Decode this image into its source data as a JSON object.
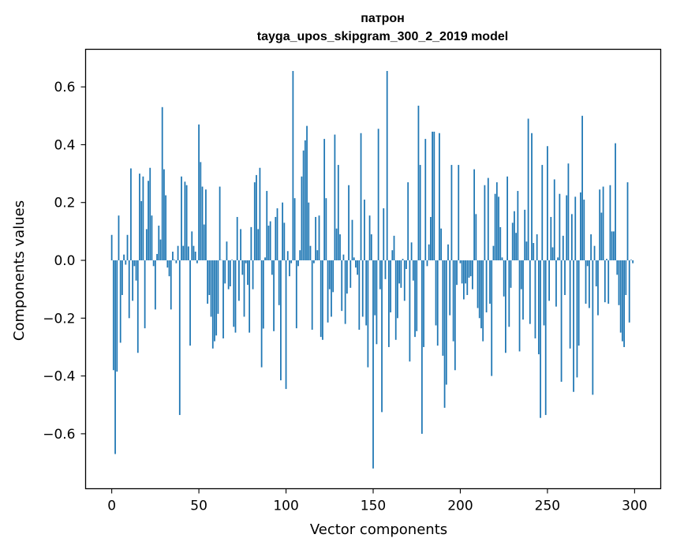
{
  "chart_data": {
    "type": "bar",
    "title": "патрон",
    "subtitle": "tayga_upos_skipgram_300_2_2019 model",
    "xlabel": "Vector components",
    "ylabel": "Components values",
    "xlim": [
      -15,
      315
    ],
    "ylim": [
      -0.79,
      0.73
    ],
    "xticks": [
      0,
      50,
      100,
      150,
      200,
      250,
      300
    ],
    "yticks": [
      -0.6,
      -0.4,
      -0.2,
      0.0,
      0.2,
      0.4,
      0.6
    ],
    "ytick_labels": [
      "−0.6",
      "−0.4",
      "−0.2",
      "0.0",
      "0.2",
      "0.4",
      "0.6"
    ],
    "grid": false,
    "colors": {
      "bar": "#1f77b4",
      "axis": "#000000",
      "background": "#ffffff"
    },
    "values": [
      0.088,
      -0.38,
      -0.67,
      -0.385,
      0.155,
      -0.285,
      -0.12,
      0.02,
      -0.015,
      0.088,
      -0.2,
      0.318,
      -0.14,
      -0.02,
      -0.07,
      -0.32,
      0.3,
      0.205,
      0.29,
      -0.235,
      0.108,
      0.275,
      0.32,
      0.155,
      -0.02,
      -0.17,
      0.022,
      0.12,
      0.072,
      0.53,
      0.315,
      0.225,
      -0.025,
      -0.055,
      -0.17,
      0.03,
      0.002,
      -0.01,
      0.05,
      -0.535,
      0.29,
      0.05,
      0.272,
      0.26,
      0.048,
      -0.295,
      0.1,
      0.05,
      0.03,
      -0.01,
      0.47,
      0.34,
      0.255,
      0.124,
      0.245,
      -0.15,
      -0.12,
      -0.195,
      -0.305,
      -0.28,
      -0.26,
      -0.185,
      0.255,
      0.001,
      -0.27,
      -0.08,
      0.065,
      -0.1,
      -0.09,
      0.002,
      -0.23,
      -0.25,
      0.15,
      -0.14,
      0.108,
      -0.05,
      -0.195,
      -0.01,
      -0.085,
      -0.25,
      0.115,
      -0.1,
      0.27,
      0.295,
      0.108,
      0.32,
      -0.37,
      -0.236,
      0.01,
      0.24,
      0.12,
      0.135,
      -0.05,
      -0.245,
      0.15,
      0.18,
      -0.155,
      -0.415,
      0.2,
      0.13,
      -0.445,
      0.032,
      -0.055,
      -0.01,
      0.655,
      0.215,
      -0.235,
      -0.02,
      0.035,
      0.29,
      0.38,
      0.415,
      0.465,
      0.2,
      0.05,
      -0.24,
      -0.01,
      0.15,
      0.035,
      0.155,
      -0.265,
      -0.275,
      0.42,
      0.215,
      -0.215,
      -0.1,
      -0.195,
      -0.11,
      0.435,
      0.11,
      0.33,
      0.09,
      -0.175,
      0.02,
      -0.22,
      -0.115,
      0.26,
      -0.095,
      0.14,
      0.01,
      -0.025,
      -0.05,
      -0.24,
      0.44,
      -0.195,
      0.21,
      -0.225,
      -0.37,
      0.155,
      0.09,
      -0.72,
      -0.19,
      -0.29,
      0.455,
      -0.1,
      -0.525,
      0.18,
      -0.065,
      0.655,
      -0.3,
      -0.18,
      0.035,
      0.085,
      -0.275,
      -0.2,
      -0.08,
      -0.095,
      0.005,
      -0.14,
      -0.03,
      0.27,
      -0.35,
      0.062,
      -0.07,
      -0.265,
      -0.245,
      0.535,
      0.33,
      -0.6,
      -0.3,
      0.42,
      -0.02,
      0.055,
      0.15,
      0.445,
      0.445,
      -0.225,
      -0.295,
      0.44,
      0.11,
      -0.33,
      -0.51,
      -0.43,
      0.055,
      -0.19,
      0.33,
      -0.28,
      -0.38,
      -0.085,
      0.33,
      -0.01,
      -0.08,
      -0.135,
      -0.08,
      -0.12,
      -0.06,
      -0.055,
      -0.1,
      0.315,
      0.16,
      -0.165,
      -0.2,
      -0.235,
      -0.28,
      0.26,
      -0.18,
      0.285,
      -0.15,
      -0.4,
      0.05,
      0.23,
      0.27,
      0.22,
      0.115,
      0.01,
      -0.125,
      -0.32,
      0.29,
      -0.23,
      -0.095,
      0.13,
      0.17,
      0.095,
      0.24,
      -0.315,
      -0.1,
      -0.205,
      0.175,
      0.065,
      0.49,
      -0.22,
      0.44,
      0.06,
      -0.27,
      0.09,
      -0.325,
      -0.545,
      0.33,
      -0.225,
      -0.535,
      0.395,
      -0.14,
      0.15,
      0.045,
      0.28,
      -0.16,
      0.01,
      0.23,
      -0.42,
      0.085,
      -0.12,
      0.225,
      0.335,
      -0.305,
      0.16,
      -0.455,
      0.22,
      -0.405,
      -0.295,
      0.235,
      0.5,
      0.21,
      -0.15,
      -0.02,
      -0.165,
      0.09,
      -0.465,
      0.05,
      -0.09,
      -0.19,
      0.245,
      0.165,
      0.255,
      -0.145,
      0.005,
      -0.15,
      0.26,
      0.1,
      0.1,
      0.405,
      -0.05,
      -0.155,
      -0.25,
      -0.28,
      -0.3,
      -0.12,
      0.27,
      -0.215,
      0.002,
      -0.01
    ]
  }
}
